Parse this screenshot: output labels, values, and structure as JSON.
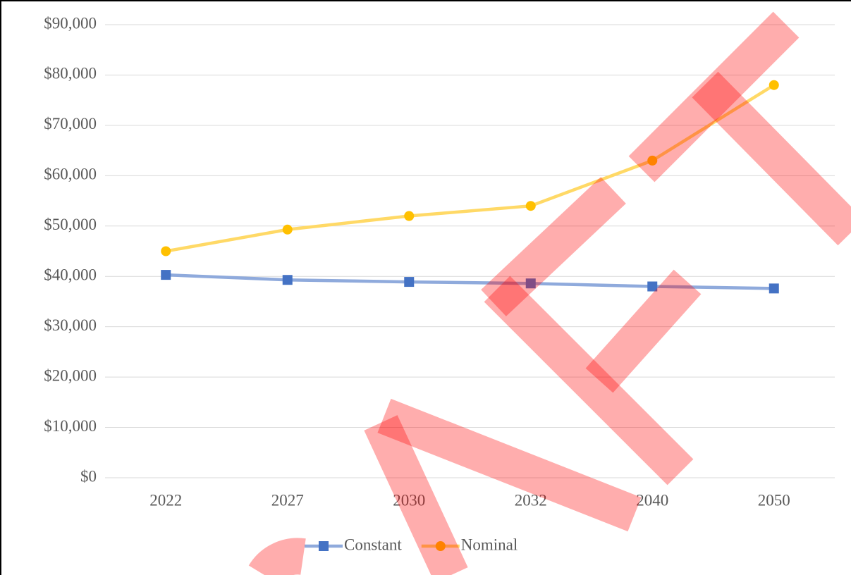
{
  "chart_data": {
    "type": "line",
    "categories": [
      "2022",
      "2027",
      "2030",
      "2032",
      "2040",
      "2050"
    ],
    "series": [
      {
        "name": "Constant",
        "color": "#4472c4",
        "line_color": "#8faadc",
        "marker": "square",
        "values": [
          40300,
          39300,
          38900,
          38600,
          38000,
          37600
        ]
      },
      {
        "name": "Nominal",
        "color": "#ffc000",
        "line_color": "#ffd966",
        "marker": "circle",
        "values": [
          45000,
          49300,
          52000,
          54000,
          63000,
          78000
        ]
      }
    ],
    "ylim": [
      0,
      90000
    ],
    "yticks": [
      {
        "value": 0,
        "label": "$0"
      },
      {
        "value": 10000,
        "label": "$10,000"
      },
      {
        "value": 20000,
        "label": "$20,000"
      },
      {
        "value": 30000,
        "label": "$30,000"
      },
      {
        "value": 40000,
        "label": "$40,000"
      },
      {
        "value": 50000,
        "label": "$50,000"
      },
      {
        "value": 60000,
        "label": "$60,000"
      },
      {
        "value": 70000,
        "label": "$70,000"
      },
      {
        "value": 80000,
        "label": "$80,000"
      },
      {
        "value": 90000,
        "label": "$90,000"
      }
    ],
    "grid": true,
    "legend": "bottom"
  }
}
